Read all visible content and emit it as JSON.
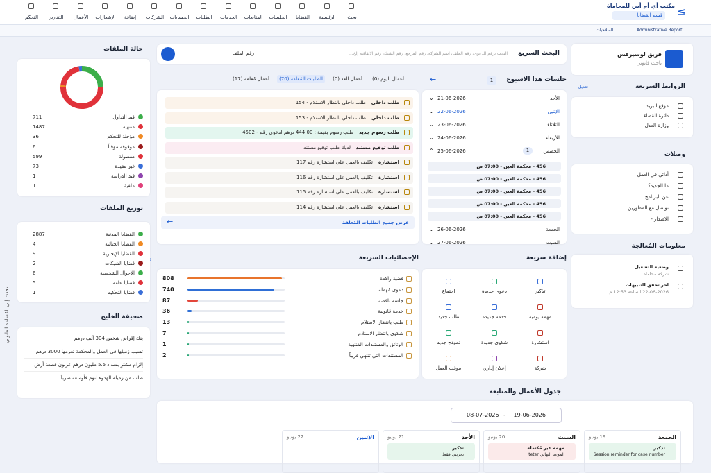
{
  "nav": {
    "brand": "مكتب أي أم أس للمحاماة",
    "department": "قسم القضايا",
    "items": [
      "بحث",
      "الرئيسية",
      "القضايا",
      "الجلسات",
      "المتابعات",
      "الخدمات",
      "الطلبات",
      "الحسابات",
      "الشركات",
      "إضافة",
      "الإشعارات",
      "الأعمال",
      "التقارير",
      "التحكم"
    ]
  },
  "subbar": {
    "report": "Administrative Report",
    "permissions": "الصلاحيات"
  },
  "profile": {
    "name": "فريق لوسيرفس",
    "role": "باحث قانوني"
  },
  "quick_links": {
    "title": "الروابط السريعة",
    "edit": "تعديل",
    "items": [
      "موقع البريد",
      "دائرة القضاء",
      "وزارة العدل"
    ]
  },
  "links": {
    "title": "وصلات",
    "items": [
      "أدائي في العمل",
      "ما الجديد؟",
      "عن البرنامج",
      "تواصل مع المطورين",
      "الاصدار -"
    ]
  },
  "processing": {
    "title": "معلومات المُعالجة",
    "items": [
      {
        "label": "وضعية التشغيل",
        "value": "شركة محاماة"
      },
      {
        "label": "اخر تحقق للتنبيهات",
        "value": "22-06-2026 الساعة 12:53 م"
      }
    ]
  },
  "search": {
    "title": "البحث السريع",
    "placeholder": "البحث برقم الدعوى، رقم الملف، اسم الشركة، رقم المرجع، رقم الشيك، رقم الاتفاقية إلخ...",
    "field": "رقم الملف"
  },
  "week": {
    "title": "جلسات هذا الاسبوع",
    "count": "1",
    "days": [
      {
        "day": "الأحد",
        "date": "21-06-2026"
      },
      {
        "day": "الإثنين",
        "date": "22-06-2026"
      },
      {
        "day": "الثلاثاء",
        "date": "23-06-2026"
      },
      {
        "day": "الأربعاء",
        "date": "24-06-2026"
      },
      {
        "day": "الخميس",
        "date": "25-06-2026",
        "badge": "1"
      },
      {
        "day": "الجمعة",
        "date": "26-06-2026"
      },
      {
        "day": "السبت",
        "date": "27-06-2026"
      }
    ],
    "today": 1,
    "open": 4,
    "sessions": [
      "456 - محكمة العين - 07:00 ص",
      "456 - محكمة العين - 07:00 ص",
      "456 - محكمة العين - 07:00 ص",
      "456 - محكمة العين - 07:00 ص",
      "456 - محكمة العين - 07:00 ص"
    ]
  },
  "tabs": {
    "items": [
      "أعمال اليوم (0)",
      "أعمال الغد (0)",
      "الطلبات المُعلقة (70)",
      "أعمال مُعلقة (17)"
    ],
    "active": 2
  },
  "requests": {
    "items": [
      {
        "type": "طلب داخلي",
        "text": "طلب داخلي بانتظار الاستلام - 154",
        "color": "#fbf3ea"
      },
      {
        "type": "طلب داخلي",
        "text": "طلب داخلي بانتظار الاستلام - 153",
        "color": "#fbf3ea"
      },
      {
        "type": "طلب رسوم جديد",
        "text": "طلب رسوم بقيمة : 444.00 درهم لدعوى رقم - 4502",
        "color": "#e3f6ef"
      },
      {
        "type": "طلب توقيع مستند",
        "text": "لديك طلب توقيع مستند",
        "color": "#fbecf2"
      },
      {
        "type": "استشارة",
        "text": "تكليف بالعمل على استشارة رقم 117",
        "color": "#f6f4f1"
      },
      {
        "type": "استشارة",
        "text": "تكليف بالعمل على استشارة رقم 116",
        "color": "#f6f4f1"
      },
      {
        "type": "استشارة",
        "text": "تكليف بالعمل على استشارة رقم 115",
        "color": "#f6f4f1"
      },
      {
        "type": "استشارة",
        "text": "تكليف بالعمل على استشارة رقم 114",
        "color": "#f6f4f1"
      }
    ],
    "footer": "عرض جميع الطلبات المُعلقة"
  },
  "quick_add": {
    "title": "إضافة سريعة",
    "items": [
      {
        "label": "تذكير",
        "color": "#3a6fd8"
      },
      {
        "label": "دعوى جديدة",
        "color": "#2aa876"
      },
      {
        "label": "اجتماع",
        "color": "#3a6fd8"
      },
      {
        "label": "مهمة يومية",
        "color": "#c0392b"
      },
      {
        "label": "خدمة جديدة",
        "color": "#3a6fd8"
      },
      {
        "label": "طلب جديد",
        "color": "#3a6fd8"
      },
      {
        "label": "استشارة",
        "color": "#c0392b"
      },
      {
        "label": "شكوى جديدة",
        "color": "#2aa876"
      },
      {
        "label": "نموذج جديد",
        "color": "#2aa876"
      },
      {
        "label": "شركة",
        "color": "#c0392b"
      },
      {
        "label": "إعلان إداري",
        "color": "#8e44ad"
      },
      {
        "label": "موقت العمل",
        "color": "#e67e22"
      }
    ]
  },
  "stats": {
    "title": "الإحصائيات السريعة",
    "items": [
      {
        "label": "قضية راكدة",
        "value": 808,
        "color": "#e8742c"
      },
      {
        "label": "دعوى مُهملة",
        "value": 740,
        "color": "#2f6fd6"
      },
      {
        "label": "جلسة ناقصة",
        "value": 87,
        "color": "#e3463a"
      },
      {
        "label": "خدمة قانونية",
        "value": 36,
        "color": "#2f6fd6"
      },
      {
        "label": "طلب بانتظار الاستلام",
        "value": 13,
        "color": "#2aa876"
      },
      {
        "label": "شكوى بانتظار الاستلام",
        "value": 7,
        "color": "#2aa876"
      },
      {
        "label": "الوثائق والمستندات المُنتهية",
        "value": 1,
        "color": "#2aa876"
      },
      {
        "label": "المستندات التي تنتهي قريباً",
        "value": 2,
        "color": "#2aa876"
      }
    ]
  },
  "file_status": {
    "title": "حالة الملفات",
    "items": [
      {
        "label": "قيد التداول",
        "value": 711,
        "color": "#3cae4a"
      },
      {
        "label": "منتهية",
        "value": 1487,
        "color": "#e0323a"
      },
      {
        "label": "مؤجلة للتحكم",
        "value": 36,
        "color": "#f08a24"
      },
      {
        "label": "موقوفة مؤقتاً",
        "value": 6,
        "color": "#9b1b1b"
      },
      {
        "label": "مفصولة",
        "value": 599,
        "color": "#e0323a"
      },
      {
        "label": "غير مقيدة",
        "value": 73,
        "color": "#3a6fd8"
      },
      {
        "label": "قيد الدراسة",
        "value": 1,
        "color": "#8e44ad"
      },
      {
        "label": "ملغية",
        "value": 1,
        "color": "#e0407a"
      }
    ]
  },
  "file_distribution": {
    "title": "توزيع الملفات",
    "items": [
      {
        "label": "القضايا المدنية",
        "value": 2887,
        "color": "#3cae4a"
      },
      {
        "label": "القضايا الجنائية",
        "value": 4,
        "color": "#f08a24"
      },
      {
        "label": "القضايا الإيجارية",
        "value": 9,
        "color": "#e0323a"
      },
      {
        "label": "قضايا الشيكات",
        "value": 2,
        "color": "#9b1b1b"
      },
      {
        "label": "الأحوال الشخصية",
        "value": 6,
        "color": "#3cae4a"
      },
      {
        "label": "قضايا عامة",
        "value": 5,
        "color": "#e0323a"
      },
      {
        "label": "قضايا التحكيم",
        "value": 1,
        "color": "#3a6fd8"
      }
    ]
  },
  "news": {
    "title": "صحيفة الخليج",
    "items": [
      "بنك إقراض شخص 304 ألف درهم",
      "تسبب زميلها في العمل والمحكمة تغرمها 3000 درهم",
      "إلزام مشترٍ بسداد 5.5 مليون درهم عربون قطعة أرض",
      "طلب من زميله الهدوء لنوم فأوسعه ضرباً"
    ]
  },
  "assistant": "تحدث إلى المُساعد القانوني",
  "schedule": {
    "title": "جدول الأعمال والمتابعة",
    "range_start": "19-06-2026",
    "range_end": "08-07-2026",
    "days": [
      {
        "day": "الجمعة",
        "date": "19 يونيو",
        "entry": "تذكير",
        "text": "Session reminder for case number",
        "color": "#e6f5ec"
      },
      {
        "day": "السبت",
        "date": "20 يونيو",
        "entry": "مهمة غير مُكتملة",
        "text": "الموعد النهائي teter",
        "color": "#fbeaea"
      },
      {
        "day": "الأحد",
        "date": "21 يونيو",
        "entry": "تذكير",
        "text": "تجريبي فقط",
        "color": "#e6f5ec"
      },
      {
        "day": "الإثنين",
        "date": "22 يونيو"
      }
    ]
  }
}
